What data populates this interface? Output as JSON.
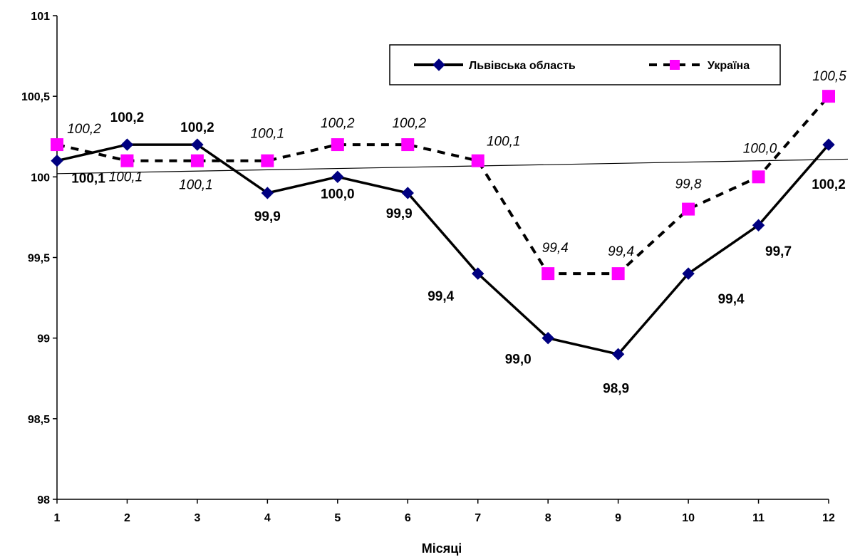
{
  "chart_data": {
    "type": "line",
    "xlabel": "Місяці",
    "ylabel": "",
    "categories": [
      "1",
      "2",
      "3",
      "4",
      "5",
      "6",
      "7",
      "8",
      "9",
      "10",
      "11",
      "12"
    ],
    "ylim": [
      98,
      101
    ],
    "yticks": [
      "98",
      "98,5",
      "99",
      "99,5",
      "100",
      "100,5",
      "101"
    ],
    "grid": false,
    "legend_position": "top-right",
    "series": [
      {
        "name": "Львівська область",
        "values": [
          100.1,
          100.2,
          100.2,
          99.9,
          100.0,
          99.9,
          99.4,
          99.0,
          98.9,
          99.4,
          99.7,
          100.2
        ],
        "labels": [
          "100,1",
          "100,2",
          "100,2",
          "99,9",
          "100,0",
          "99,9",
          "99,4",
          "99,0",
          "98,9",
          "99,4",
          "99,7",
          "100,2"
        ],
        "color": "#000080",
        "line_color": "#000000",
        "line_style": "solid",
        "marker": "diamond"
      },
      {
        "name": "Україна",
        "values": [
          100.2,
          100.1,
          100.1,
          100.1,
          100.2,
          100.2,
          100.1,
          99.4,
          99.4,
          99.8,
          100.0,
          100.5
        ],
        "labels": [
          "100,2",
          "100,1",
          "100,1",
          "100,1",
          "100,2",
          "100,2",
          "100,1",
          "99,4",
          "99,4",
          "99,8",
          "100,0",
          "100,5"
        ],
        "color": "#ff00ff",
        "line_color": "#000000",
        "line_style": "dashed",
        "marker": "square"
      }
    ],
    "trendline": {
      "start": 100.02,
      "end": 100.1,
      "color": "#000000"
    }
  }
}
